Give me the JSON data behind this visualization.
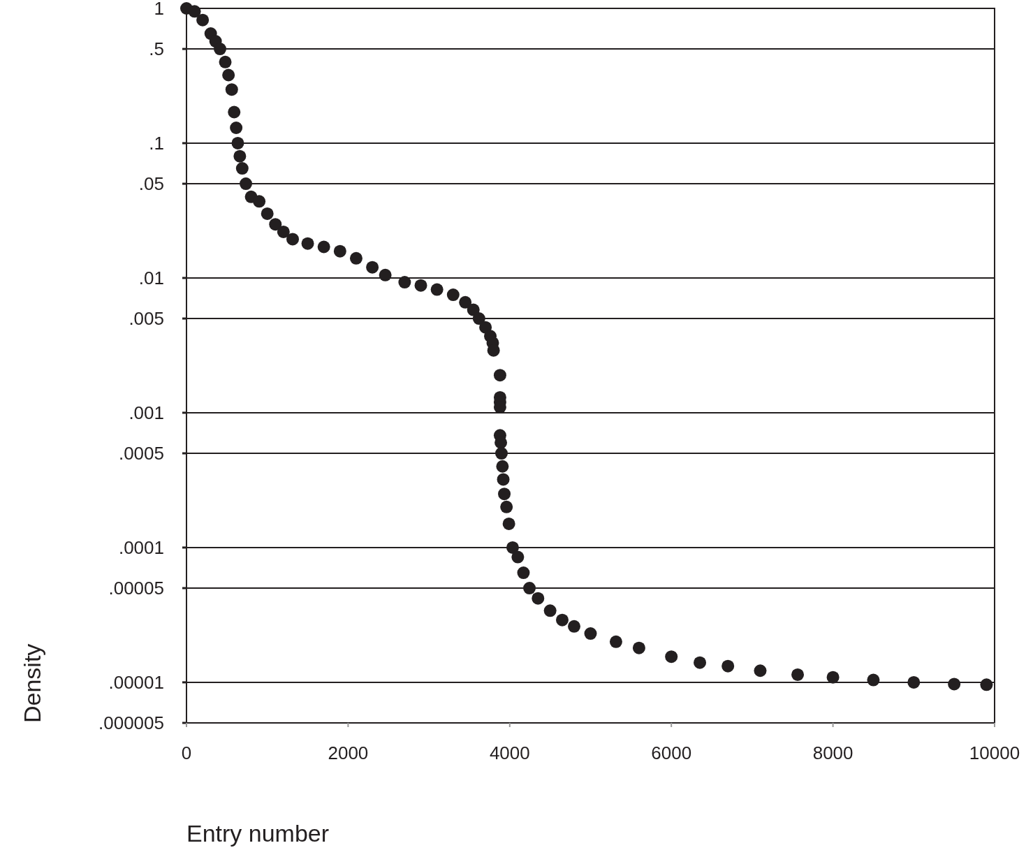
{
  "chart_data": {
    "type": "scatter",
    "xlabel": "Entry number",
    "ylabel": "Density",
    "log": "y",
    "grid": "y",
    "marker": "circle",
    "xlim": [
      0,
      10000
    ],
    "xticks": [
      0,
      2000,
      4000,
      6000,
      8000,
      10000
    ],
    "ylim": [
      5e-06,
      1
    ],
    "yticks": [
      {
        "value": 1,
        "label": "1"
      },
      {
        "value": 0.5,
        "label": ".5"
      },
      {
        "value": 0.1,
        "label": ".1"
      },
      {
        "value": 0.05,
        "label": ".05"
      },
      {
        "value": 0.01,
        "label": ".01"
      },
      {
        "value": 0.005,
        "label": ".005"
      },
      {
        "value": 0.001,
        "label": ".001"
      },
      {
        "value": 0.0005,
        "label": ".0005"
      },
      {
        "value": 0.0001,
        "label": ".0001"
      },
      {
        "value": 5e-05,
        "label": ".00005"
      },
      {
        "value": 1e-05,
        "label": ".00001"
      },
      {
        "value": 5e-06,
        "label": ".000005"
      }
    ],
    "series": [
      {
        "color": "#231f20",
        "x": [
          0,
          100,
          200,
          300,
          360,
          415,
          480,
          520,
          560,
          590,
          615,
          635,
          660,
          690,
          735,
          800,
          900,
          1000,
          1100,
          1200,
          1314,
          1500,
          1700,
          1900,
          2100,
          2300,
          2460,
          2700,
          2900,
          3100,
          3300,
          3450,
          3550,
          3620,
          3700,
          3760,
          3790,
          3800,
          3880,
          3880,
          3880,
          3880,
          3880,
          3890,
          3898,
          3910,
          3920,
          3933,
          3960,
          3990,
          4036,
          4100,
          4170,
          4244,
          4350,
          4500,
          4650,
          4797,
          5000,
          5315,
          5600,
          6000,
          6353,
          6700,
          7100,
          7563,
          8000,
          8500,
          9000,
          9500,
          9900
        ],
        "values": [
          1,
          0.95,
          0.82,
          0.65,
          0.57,
          0.5,
          0.4,
          0.32,
          0.25,
          0.17,
          0.13,
          0.1,
          0.08,
          0.065,
          0.05,
          0.04,
          0.037,
          0.03,
          0.025,
          0.022,
          0.0194,
          0.018,
          0.017,
          0.0158,
          0.014,
          0.012,
          0.0105,
          0.0093,
          0.0088,
          0.0082,
          0.0075,
          0.0066,
          0.0058,
          0.005,
          0.0043,
          0.0037,
          0.0033,
          0.0029,
          0.0019,
          0.0013,
          0.0012,
          0.0011,
          0.00068,
          0.0006,
          0.0005,
          0.0004,
          0.00032,
          0.00025,
          0.0002,
          0.00015,
          0.0001,
          8.5e-05,
          6.5e-05,
          5e-05,
          4.2e-05,
          3.4e-05,
          2.9e-05,
          2.6e-05,
          2.3e-05,
          2e-05,
          1.8e-05,
          1.55e-05,
          1.4e-05,
          1.32e-05,
          1.22e-05,
          1.14e-05,
          1.09e-05,
          1.04e-05,
          1e-05,
          9.7e-06,
          9.6e-06
        ]
      }
    ]
  }
}
